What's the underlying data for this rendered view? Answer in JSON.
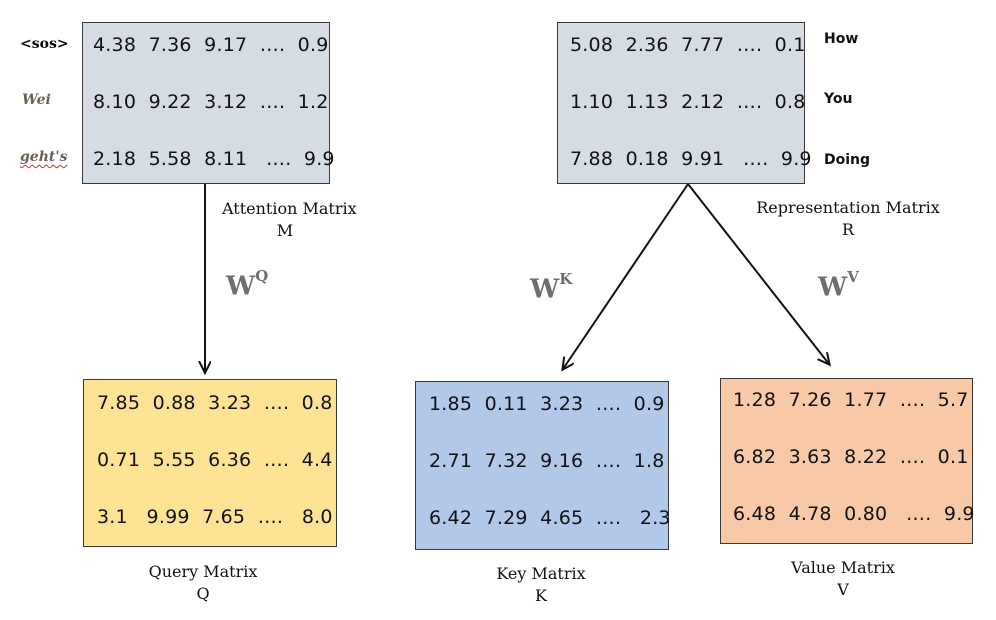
{
  "attention": {
    "tokens": [
      "<sos>",
      "Wei",
      "geht's"
    ],
    "rows": [
      "4.38  7.36  9.17  ….  0.9",
      "8.10  9.22  3.12  ….  1.2",
      "2.18  5.58  8.11   ….  9.9"
    ],
    "caption_line1": "Attention Matrix",
    "caption_line2": "M"
  },
  "representation": {
    "words": [
      "How",
      "You",
      "Doing"
    ],
    "rows": [
      "5.08  2.36  7.77  ….  0.1",
      "1.10  1.13  2.12  ….  0.8",
      "7.88  0.18  9.91   ….  9.9"
    ],
    "caption_line1": "Representation Matrix",
    "caption_line2": "R"
  },
  "query": {
    "rows": [
      "7.85  0.88  3.23  ….  0.8",
      "0.71  5.55  6.36  ….  4.4",
      "3.1   9.99  7.65  ….   8.0"
    ],
    "caption_line1": "Query Matrix",
    "caption_line2": "Q"
  },
  "key": {
    "rows": [
      "1.85  0.11  3.23  ….  0.9",
      "2.71  7.32  9.16  ….  1.8",
      "6.42  7.29  4.65  ….   2.3"
    ],
    "caption_line1": "Key Matrix",
    "caption_line2": "K"
  },
  "value": {
    "rows": [
      "1.28  7.26  1.77  ….  5.7",
      "6.82  3.63  8.22  ….  0.1",
      "6.48  4.78  0.80   ….  9.9"
    ],
    "caption_line1": "Value Matrix",
    "caption_line2": "V"
  },
  "weights": {
    "q_base": "W",
    "q_sup": "Q",
    "k_base": "W",
    "k_sup": "K",
    "v_base": "W",
    "v_sup": "V"
  },
  "colors": {
    "gray": "#d6dce4",
    "yellow": "#ffe394",
    "blue": "#b2c8e8",
    "orange": "#f8c9a6"
  }
}
